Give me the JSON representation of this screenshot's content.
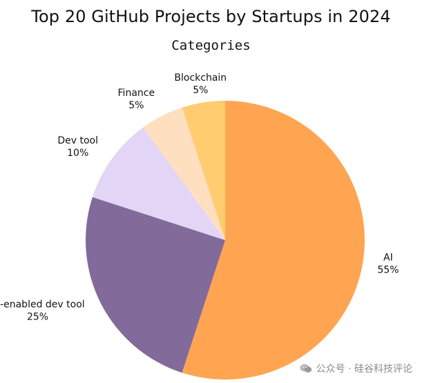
{
  "chart_data": {
    "type": "pie",
    "title": "Top 20 GitHub Projects by Startups in 2024",
    "subtitle": "Categories",
    "slices": [
      {
        "label": "AI",
        "value": 55,
        "percent_label": "55%",
        "color": "#FFA552"
      },
      {
        "label": "AI-enabled dev tool",
        "value": 25,
        "percent_label": "25%",
        "color": "#826A9A"
      },
      {
        "label": "Dev tool",
        "value": 10,
        "percent_label": "10%",
        "color": "#E2D5F5"
      },
      {
        "label": "Finance",
        "value": 5,
        "percent_label": "5%",
        "color": "#FEDFC0"
      },
      {
        "label": "Blockchain",
        "value": 5,
        "percent_label": "5%",
        "color": "#FFCD70"
      }
    ],
    "start": "top",
    "direction": "clockwise"
  },
  "watermark": {
    "text": "公众号 · 硅谷科技评论",
    "icon": "wechat-icon",
    "color": "#8a8a8a"
  }
}
